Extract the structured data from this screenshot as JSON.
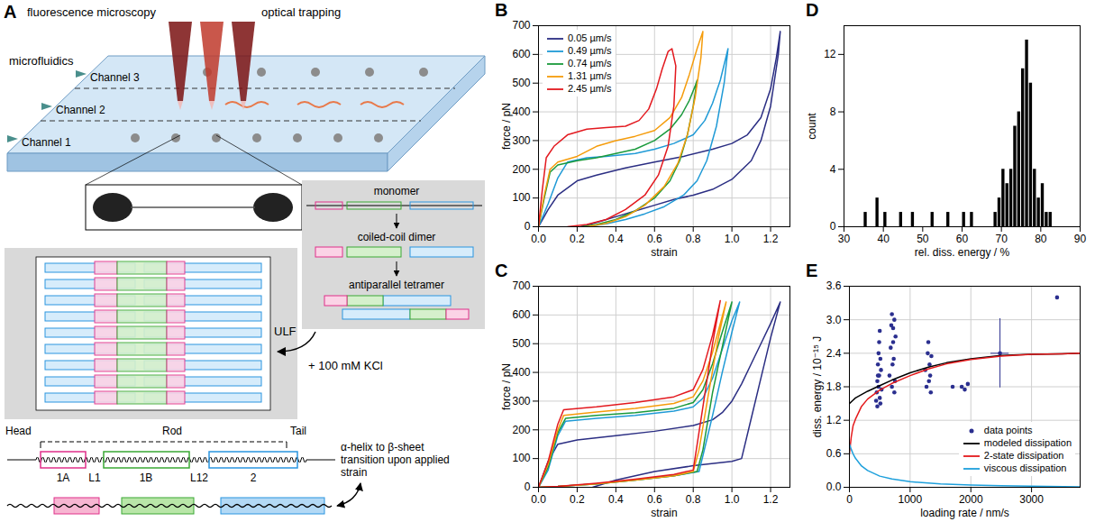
{
  "diagram": {
    "panel": "A",
    "setup_labels": [
      "fluorescence microscopy",
      "optical trapping",
      "microfluidics"
    ],
    "channels": [
      "Channel 3",
      "Channel 2",
      "Channel 1"
    ],
    "assembly_steps": [
      "monomer",
      "coiled-coil dimer",
      "antiparallel tetramer"
    ],
    "ulf": "ULF",
    "salt": "+ 100 mM KCl",
    "domains": {
      "head": "Head",
      "rod": "Rod",
      "tail": "Tail"
    },
    "segments": [
      "1A",
      "L1",
      "1B",
      "L12",
      "2"
    ],
    "transition": "α-helix to β-sheet transition upon applied strain"
  },
  "chart_data": [
    {
      "panel": "B",
      "type": "line",
      "x_label": "strain",
      "y_label": "force / pN",
      "xlim": [
        0,
        1.3
      ],
      "ylim": [
        0,
        700
      ],
      "xticks": [
        {
          "value": 0,
          "label": "0.0"
        },
        0.2,
        0.4,
        0.6,
        0.8,
        {
          "value": 1,
          "label": "1.0"
        },
        1.2
      ],
      "yticks": [
        0,
        100,
        200,
        300,
        400,
        500,
        600,
        700
      ],
      "grid": true,
      "legend": "upper left",
      "series": [
        {
          "name": "0.05 µm/s",
          "color": "#2b2e83",
          "x": [
            0,
            0.05,
            0.1,
            0.2,
            0.3,
            0.45,
            0.6,
            0.75,
            0.9,
            1.0,
            1.08,
            1.15,
            1.2,
            1.23,
            1.25,
            1.24,
            1.2,
            1.15,
            1.1,
            1.0,
            0.9,
            0.8,
            0.7,
            0.6,
            0.5,
            0.4,
            0.3,
            0.22
          ],
          "values": [
            0,
            60,
            110,
            160,
            180,
            205,
            225,
            245,
            270,
            290,
            320,
            380,
            480,
            590,
            680,
            600,
            420,
            300,
            230,
            165,
            130,
            110,
            95,
            75,
            55,
            35,
            15,
            0
          ]
        },
        {
          "name": "0.49 µm/s",
          "color": "#1f9ad6",
          "x": [
            0,
            0.05,
            0.1,
            0.15,
            0.25,
            0.35,
            0.5,
            0.6,
            0.7,
            0.8,
            0.86,
            0.9,
            0.94,
            0.98,
            0.96,
            0.92,
            0.87,
            0.82,
            0.75,
            0.65,
            0.55,
            0.45,
            0.35,
            0.25
          ],
          "values": [
            0,
            80,
            170,
            225,
            240,
            245,
            255,
            270,
            290,
            320,
            370,
            430,
            510,
            620,
            500,
            350,
            230,
            160,
            110,
            70,
            45,
            25,
            10,
            0
          ]
        },
        {
          "name": "0.74 µm/s",
          "color": "#1a9a3c",
          "x": [
            0,
            0.03,
            0.06,
            0.1,
            0.2,
            0.3,
            0.4,
            0.5,
            0.6,
            0.68,
            0.74,
            0.78,
            0.81,
            0.82,
            0.8,
            0.77,
            0.73,
            0.68,
            0.6,
            0.5,
            0.4,
            0.3,
            0.22
          ],
          "values": [
            0,
            100,
            190,
            215,
            230,
            240,
            255,
            270,
            300,
            340,
            390,
            440,
            490,
            510,
            420,
            320,
            230,
            160,
            100,
            55,
            25,
            8,
            0
          ]
        },
        {
          "name": "1.31 µm/s",
          "color": "#f59c0b",
          "x": [
            0,
            0.03,
            0.06,
            0.1,
            0.2,
            0.3,
            0.4,
            0.5,
            0.6,
            0.68,
            0.74,
            0.78,
            0.82,
            0.85,
            0.84,
            0.81,
            0.77,
            0.72,
            0.65,
            0.55,
            0.45,
            0.35,
            0.25
          ],
          "values": [
            0,
            110,
            200,
            225,
            245,
            280,
            300,
            315,
            335,
            380,
            450,
            530,
            620,
            680,
            590,
            450,
            320,
            220,
            140,
            75,
            35,
            12,
            0
          ]
        },
        {
          "name": "2.45 µm/s",
          "color": "#e3191f",
          "x": [
            0,
            0.02,
            0.04,
            0.08,
            0.15,
            0.25,
            0.35,
            0.45,
            0.52,
            0.57,
            0.61,
            0.64,
            0.67,
            0.69,
            0.71,
            0.7,
            0.67,
            0.62,
            0.55,
            0.45,
            0.35,
            0.25,
            0.15
          ],
          "values": [
            0,
            130,
            240,
            280,
            320,
            340,
            345,
            350,
            370,
            410,
            480,
            550,
            610,
            620,
            560,
            420,
            280,
            180,
            110,
            60,
            25,
            8,
            0
          ]
        }
      ]
    },
    {
      "panel": "C",
      "type": "line",
      "x_label": "strain",
      "y_label": "force / pN",
      "xlim": [
        0,
        1.3
      ],
      "ylim": [
        0,
        700
      ],
      "xticks": [
        {
          "value": 0,
          "label": "0.0"
        },
        0.2,
        0.4,
        0.6,
        0.8,
        {
          "value": 1,
          "label": "1.0"
        },
        1.2
      ],
      "yticks": [
        0,
        100,
        200,
        300,
        400,
        500,
        600,
        700
      ],
      "grid": true,
      "series": [
        {
          "color": "#2b2e83",
          "x": [
            0,
            0.05,
            0.1,
            0.2,
            0.4,
            0.6,
            0.8,
            0.9,
            0.95,
            1.0,
            1.05,
            1.1,
            1.15,
            1.2,
            1.25,
            1.2,
            1.15,
            1.1,
            1.05,
            1.0,
            0.8,
            0.6,
            0.4,
            0.28
          ],
          "values": [
            0,
            90,
            150,
            165,
            180,
            195,
            215,
            235,
            260,
            300,
            360,
            430,
            500,
            570,
            645,
            520,
            380,
            240,
            100,
            90,
            75,
            55,
            25,
            0
          ]
        },
        {
          "color": "#1f9ad6",
          "x": [
            0,
            0.05,
            0.1,
            0.14,
            0.3,
            0.5,
            0.7,
            0.8,
            0.85,
            0.9,
            0.95,
            1.0,
            1.04,
            1.0,
            0.95,
            0.9,
            0.85,
            0.83,
            0.7,
            0.5,
            0.3,
            0.1,
            0
          ],
          "values": [
            0,
            60,
            180,
            230,
            240,
            250,
            265,
            280,
            310,
            380,
            480,
            580,
            645,
            540,
            400,
            250,
            110,
            55,
            40,
            25,
            12,
            3,
            0
          ]
        },
        {
          "color": "#1a9a3c",
          "x": [
            0,
            0.05,
            0.1,
            0.14,
            0.3,
            0.5,
            0.7,
            0.8,
            0.85,
            0.9,
            0.95,
            1.0,
            0.96,
            0.9,
            0.85,
            0.82,
            0.7,
            0.5,
            0.3,
            0.1,
            0
          ],
          "values": [
            0,
            70,
            190,
            240,
            250,
            260,
            275,
            295,
            340,
            430,
            540,
            645,
            520,
            330,
            130,
            55,
            40,
            25,
            12,
            3,
            0
          ]
        },
        {
          "color": "#f59c0b",
          "x": [
            0,
            0.05,
            0.1,
            0.13,
            0.3,
            0.5,
            0.7,
            0.8,
            0.85,
            0.9,
            0.97,
            0.93,
            0.88,
            0.83,
            0.8,
            0.7,
            0.5,
            0.3,
            0.1,
            0
          ],
          "values": [
            0,
            80,
            200,
            250,
            262,
            275,
            292,
            315,
            370,
            470,
            645,
            520,
            330,
            130,
            55,
            40,
            25,
            12,
            3,
            0
          ]
        },
        {
          "color": "#e3191f",
          "x": [
            0,
            0.05,
            0.1,
            0.13,
            0.3,
            0.5,
            0.7,
            0.8,
            0.85,
            0.9,
            0.94,
            0.9,
            0.85,
            0.8,
            0.7,
            0.5,
            0.3,
            0.1,
            0
          ],
          "values": [
            0,
            90,
            220,
            270,
            280,
            295,
            315,
            340,
            410,
            530,
            650,
            500,
            280,
            60,
            45,
            28,
            14,
            3,
            0
          ]
        }
      ]
    },
    {
      "panel": "D",
      "type": "histogram",
      "x_label": "rel. diss. energy / %",
      "y_label": "count",
      "xlim": [
        30,
        90
      ],
      "ylim": [
        0,
        14
      ],
      "xticks": [
        30,
        40,
        50,
        60,
        70,
        80,
        90
      ],
      "yticks": [
        0,
        4,
        8,
        12
      ],
      "grid": false,
      "color": "#000000",
      "bins": [
        34,
        35,
        36,
        37,
        38,
        39,
        40,
        41,
        42,
        43,
        44,
        45,
        46,
        47,
        48,
        49,
        50,
        51,
        52,
        53,
        54,
        55,
        56,
        57,
        58,
        59,
        60,
        61,
        62,
        63,
        64,
        65,
        66,
        67,
        68,
        69,
        70,
        71,
        72,
        73,
        74,
        75,
        76,
        77,
        78,
        79,
        80,
        81,
        82,
        83
      ],
      "values": [
        0,
        1,
        0,
        0,
        2,
        0,
        1,
        0,
        0,
        0,
        1,
        0,
        0,
        1,
        0,
        0,
        0,
        0,
        1,
        0,
        0,
        0,
        1,
        0,
        0,
        0,
        1,
        0,
        1,
        0,
        0,
        0,
        0,
        0,
        1,
        2,
        4,
        3,
        4,
        7,
        8,
        11,
        13,
        10,
        4,
        2,
        3,
        1,
        1
      ]
    },
    {
      "panel": "E",
      "type": "scatter",
      "x_label": "loading rate / nm/s",
      "y_label": "diss. energy / 10⁻¹⁵ J",
      "xlim": [
        0,
        3800
      ],
      "ylim": [
        0,
        3.6
      ],
      "xticks": [
        0,
        1000,
        2000,
        3000
      ],
      "yticks": [
        {
          "value": 0,
          "label": "0.0"
        },
        0.6,
        1.2,
        1.8,
        2.4,
        {
          "value": 3,
          "label": "3.0"
        },
        3.6
      ],
      "grid": true,
      "legend": "lower right",
      "series": [
        {
          "name": "data points",
          "type": "scatter",
          "marker": "circle",
          "color": "#2b2f8f",
          "x": [
            440,
            450,
            460,
            470,
            470,
            480,
            480,
            490,
            490,
            500,
            500,
            510,
            510,
            520,
            530,
            460,
            660,
            680,
            690,
            700,
            700,
            710,
            720,
            730,
            740,
            750,
            760,
            740,
            720,
            1250,
            1270,
            1290,
            1300,
            1310,
            1320,
            1330,
            1340,
            1350,
            1700,
            1850,
            1900,
            1950,
            2480,
            3420
          ],
          "values": [
            1.55,
            1.7,
            1.9,
            2.0,
            2.2,
            1.8,
            2.4,
            2.6,
            2.0,
            2.8,
            1.6,
            2.3,
            1.5,
            2.1,
            1.75,
            1.45,
            2.0,
            2.5,
            2.9,
            3.1,
            1.8,
            2.2,
            2.6,
            2.3,
            3.0,
            1.9,
            2.7,
            1.7,
            2.85,
            2.1,
            1.8,
            2.4,
            2.6,
            1.9,
            2.2,
            2.0,
            1.7,
            2.35,
            1.8,
            1.8,
            1.75,
            1.85,
            2.4,
            3.4
          ],
          "error_bars": [
            {
              "x": 2480,
              "y": 2.4,
              "x_error": 150,
              "y_error": 0.62
            }
          ]
        },
        {
          "name": "modeled dissipation",
          "type": "line",
          "color": "#000000",
          "x": [
            0,
            50,
            100,
            200,
            300,
            500,
            700,
            1000,
            1300,
            1600,
            2000,
            2500,
            3000,
            3500,
            3800
          ],
          "values": [
            1.5,
            1.55,
            1.6,
            1.66,
            1.72,
            1.82,
            1.92,
            2.05,
            2.15,
            2.23,
            2.3,
            2.36,
            2.38,
            2.39,
            2.4
          ]
        },
        {
          "name": "2-state dissipation",
          "type": "line",
          "color": "#e41a1c",
          "x": [
            0,
            30,
            60,
            100,
            200,
            300,
            500,
            700,
            1000,
            1300,
            1600,
            2000,
            2500,
            3000,
            3500,
            3800
          ],
          "values": [
            0.6,
            0.9,
            1.1,
            1.22,
            1.45,
            1.58,
            1.74,
            1.86,
            2.0,
            2.12,
            2.21,
            2.29,
            2.35,
            2.38,
            2.39,
            2.4
          ]
        },
        {
          "name": "viscous dissipation",
          "type": "line",
          "color": "#1ea0dc",
          "x": [
            0,
            30,
            60,
            100,
            200,
            300,
            500,
            700,
            1000,
            1500,
            2000,
            2500,
            3000,
            3800
          ],
          "values": [
            0.78,
            0.68,
            0.6,
            0.52,
            0.38,
            0.3,
            0.2,
            0.15,
            0.1,
            0.06,
            0.04,
            0.03,
            0.02,
            0.01
          ]
        }
      ]
    }
  ]
}
